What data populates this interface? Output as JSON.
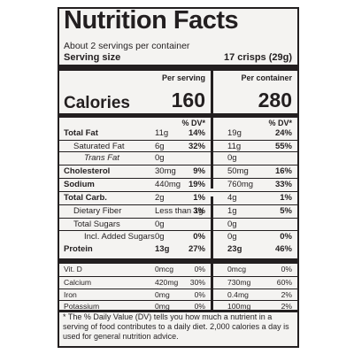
{
  "title": "Nutrition Facts",
  "servings_per_container": "About 2 servings per container",
  "serving_size_label": "Serving size",
  "serving_size_value": "17 crisps (29g)",
  "per_serving_label": "Per serving",
  "per_container_label": "Per container",
  "calories_label": "Calories",
  "calories_per_serving": "160",
  "calories_per_container": "280",
  "dv_header": "% DV*",
  "nutrients": [
    {
      "name": "Total Fat",
      "ps": "11g",
      "psdv": "14%",
      "pc": "19g",
      "pcdv": "24%"
    },
    {
      "name": "Saturated Fat",
      "ps": "6g",
      "psdv": "32%",
      "pc": "11g",
      "pcdv": "55%"
    },
    {
      "name": "Trans Fat",
      "ps": "0g",
      "psdv": "",
      "pc": "0g",
      "pcdv": ""
    },
    {
      "name": "Cholesterol",
      "ps": "30mg",
      "psdv": "9%",
      "pc": "50mg",
      "pcdv": "16%"
    },
    {
      "name": "Sodium",
      "ps": "440mg",
      "psdv": "19%",
      "pc": "760mg",
      "pcdv": "33%"
    },
    {
      "name": "Total Carb.",
      "ps": "2g",
      "psdv": "1%",
      "pc": "4g",
      "pcdv": "1%"
    },
    {
      "name": "Dietary Fiber",
      "ps": "Less than 1g",
      "psdv": "3%",
      "pc": "1g",
      "pcdv": "5%"
    },
    {
      "name": "Total Sugars",
      "ps": "0g",
      "psdv": "",
      "pc": "0g",
      "pcdv": ""
    },
    {
      "name": "Incl. Added Sugars",
      "ps": "0g",
      "psdv": "0%",
      "pc": "0g",
      "pcdv": "0%"
    },
    {
      "name": "Protein",
      "ps": "13g",
      "psdv": "27%",
      "pc": "23g",
      "pcdv": "46%"
    }
  ],
  "vitamins": [
    {
      "name": "Vit. D",
      "ps": "0mcg",
      "psdv": "0%",
      "pc": "0mcg",
      "pcdv": "0%"
    },
    {
      "name": "Calcium",
      "ps": "420mg",
      "psdv": "30%",
      "pc": "730mg",
      "pcdv": "60%"
    },
    {
      "name": "Iron",
      "ps": "0mg",
      "psdv": "0%",
      "pc": "0.4mg",
      "pcdv": "2%"
    },
    {
      "name": "Potassium",
      "ps": "0mg",
      "psdv": "0%",
      "pc": "100mg",
      "pcdv": "2%"
    }
  ],
  "footnote": "* The % Daily Value (DV) tells you how much a nutrient in a serving of food contributes to a daily diet. 2,000 calories a day is used for general nutrition advice."
}
